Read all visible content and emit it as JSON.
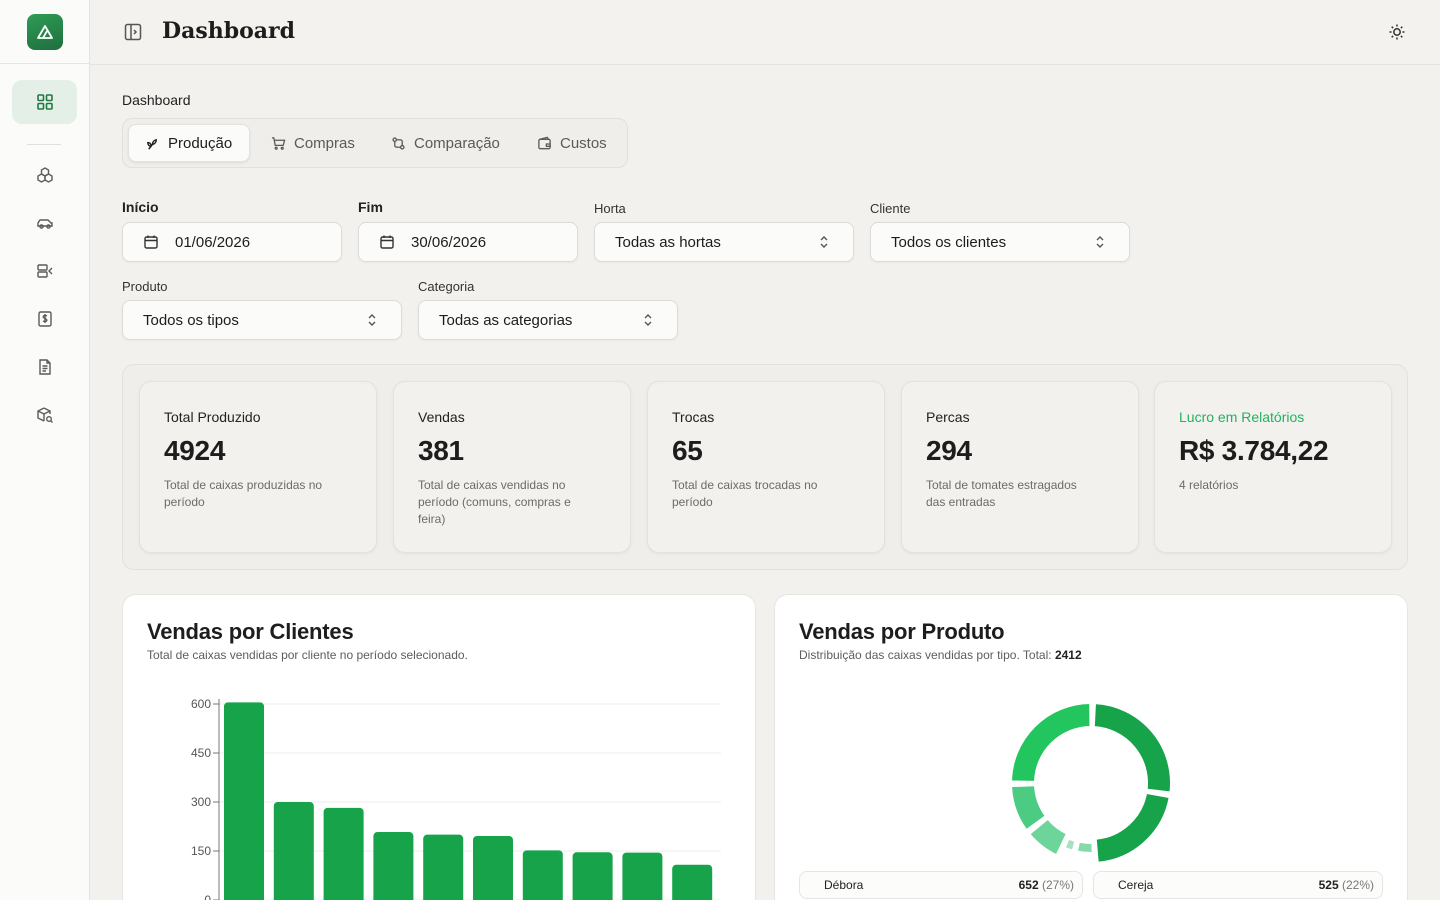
{
  "header": {
    "title": "Dashboard"
  },
  "sidebar": {
    "items": [
      {
        "icon": "dashboard-grid-icon",
        "active": true
      },
      {
        "icon": "boxes-icon"
      },
      {
        "icon": "car-icon"
      },
      {
        "icon": "inbox-arrow-icon"
      },
      {
        "icon": "dollar-receipt-icon"
      },
      {
        "icon": "document-icon"
      },
      {
        "icon": "package-search-icon"
      }
    ]
  },
  "breadcrumb": "Dashboard",
  "tabs": [
    {
      "label": "Produção",
      "icon": "sprout-icon",
      "active": true
    },
    {
      "label": "Compras",
      "icon": "cart-icon"
    },
    {
      "label": "Comparação",
      "icon": "compare-icon"
    },
    {
      "label": "Custos",
      "icon": "wallet-icon"
    }
  ],
  "filters": {
    "inicio": {
      "label": "Início",
      "value": "01/06/2026"
    },
    "fim": {
      "label": "Fim",
      "value": "30/06/2026"
    },
    "horta": {
      "label": "Horta",
      "value": "Todas as hortas"
    },
    "cliente": {
      "label": "Cliente",
      "value": "Todos os clientes"
    },
    "produto": {
      "label": "Produto",
      "value": "Todos os tipos"
    },
    "categoria": {
      "label": "Categoria",
      "value": "Todas as categorias"
    }
  },
  "stats": [
    {
      "title": "Total Produzido",
      "value": "4924",
      "desc": "Total de caixas produzidas no período"
    },
    {
      "title": "Vendas",
      "value": "381",
      "desc": "Total de caixas vendidas no período (comuns, compras e feira)"
    },
    {
      "title": "Trocas",
      "value": "65",
      "desc": "Total de caixas trocadas no período"
    },
    {
      "title": "Percas",
      "value": "294",
      "desc": "Total de tomates estragados das entradas"
    },
    {
      "title": "Lucro em Relatórios",
      "value": "R$ 3.784,22",
      "desc": "4 relatórios"
    }
  ],
  "clientes_card": {
    "title": "Vendas por Clientes",
    "subtitle": "Total de caixas vendidas por cliente no período selecionado."
  },
  "produto_card": {
    "title": "Vendas por Produto",
    "subtitle_prefix": "Distribuição das caixas vendidas por tipo. Total:",
    "total": "2412",
    "legend": [
      {
        "name": "Débora",
        "value": "652",
        "pct": "(27%)"
      },
      {
        "name": "Cereja",
        "value": "525",
        "pct": "(22%)"
      }
    ]
  },
  "colors": {
    "accent": "#1f7a41",
    "bar": "#16a34a",
    "profit": "#22b35e",
    "donut": [
      "#16a34a",
      "#22c55e",
      "#4ade80",
      "#6ee7a4",
      "#86efac",
      "#a7f3c6"
    ]
  },
  "chart_data": [
    {
      "type": "bar",
      "title": "Vendas por Clientes",
      "categories": [
        "",
        "",
        "",
        "",
        "",
        "",
        "",
        "",
        "",
        ""
      ],
      "values": [
        605,
        300,
        282,
        208,
        200,
        196,
        152,
        146,
        145,
        108
      ],
      "yticks": [
        0,
        150,
        300,
        450,
        600
      ],
      "ylim": [
        0,
        630
      ],
      "grid": true
    },
    {
      "type": "pie",
      "title": "Vendas por Produto",
      "total": 2412,
      "slices": [
        {
          "name": "Débora",
          "value": 652
        },
        {
          "name": "Cereja",
          "value": 525
        },
        {
          "value": 110
        },
        {
          "value": 70
        },
        {
          "value": 190
        },
        {
          "value": 250
        },
        {
          "value": 614
        }
      ]
    }
  ]
}
